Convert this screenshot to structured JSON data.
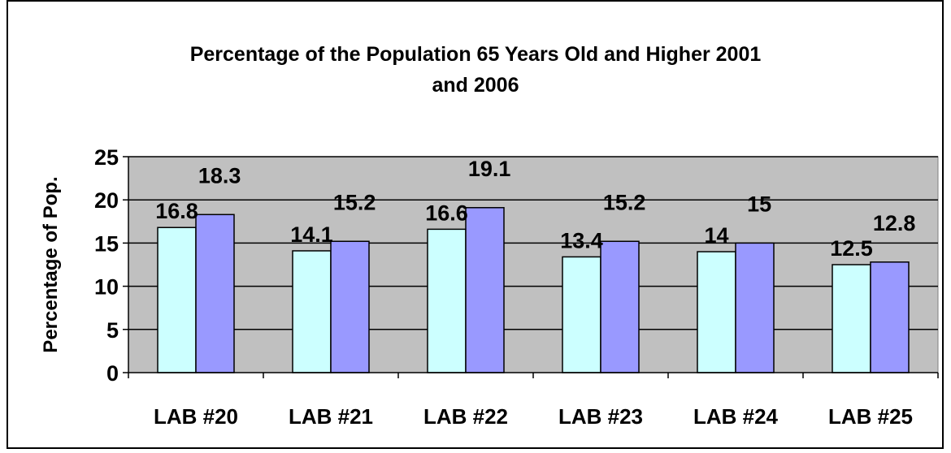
{
  "chart_data": {
    "type": "bar",
    "title_lines": [
      "Percentage of the Population 65 Years Old and Higher 2001",
      "and 2006"
    ],
    "xlabel": "",
    "ylabel": "Percentage of Pop.",
    "categories": [
      "LAB #20",
      "LAB #21",
      "LAB #22",
      "LAB #23",
      "LAB #24",
      "LAB #25"
    ],
    "series": [
      {
        "values": [
          16.8,
          14.1,
          16.6,
          13.4,
          14,
          12.5
        ],
        "color": "#CCFFFF"
      },
      {
        "values": [
          18.3,
          15.2,
          19.1,
          15.2,
          15,
          12.8
        ],
        "color": "#9999FF"
      }
    ],
    "data_labels": [
      [
        "16.8",
        "14.1",
        "16.6",
        "13.4",
        "14",
        "12.5"
      ],
      [
        "18.3",
        "15.2",
        "19.1",
        "15.2",
        "15",
        "12.8"
      ]
    ],
    "ylim": [
      0,
      25
    ],
    "yticks": [
      0,
      5,
      10,
      15,
      20,
      25
    ],
    "grid": true,
    "plot_background": "#C0C0C0",
    "legend": "none"
  }
}
